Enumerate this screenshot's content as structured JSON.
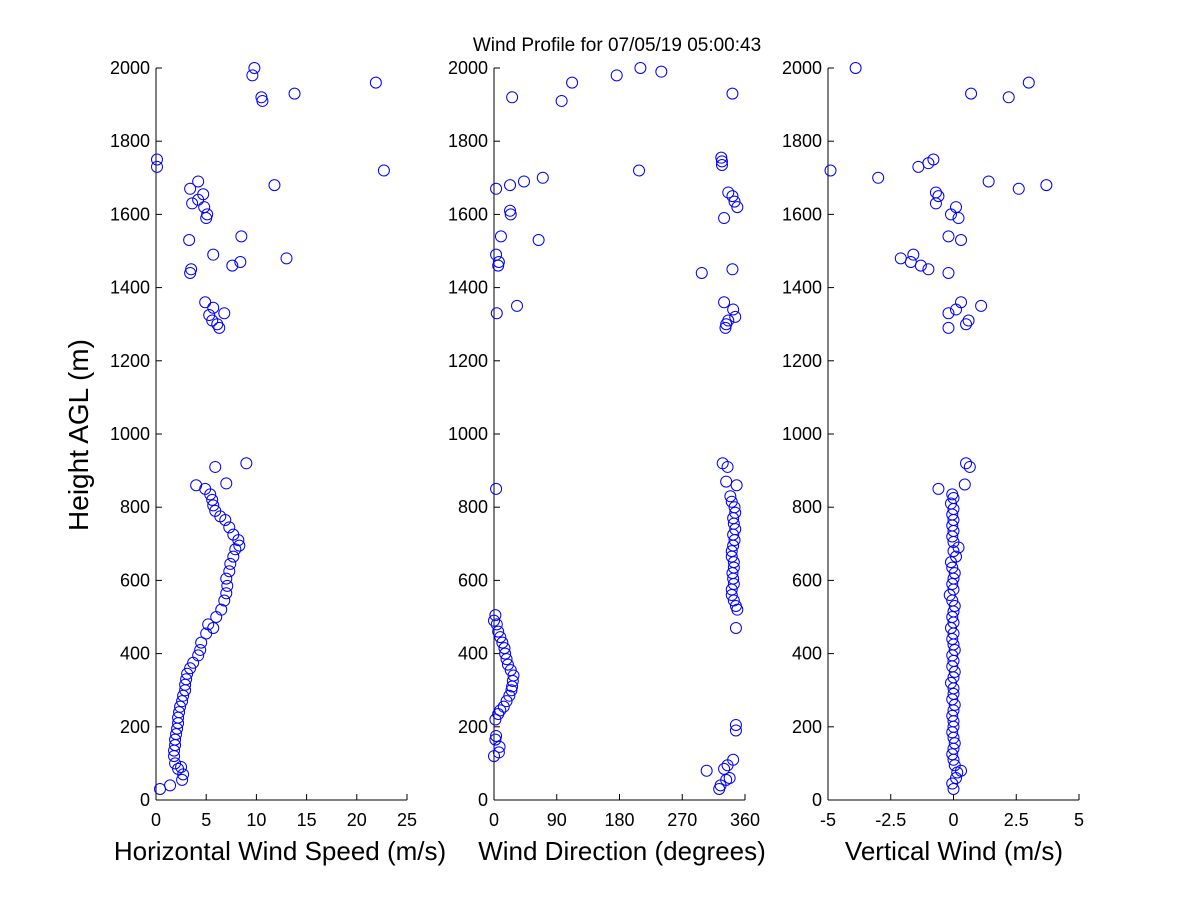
{
  "figure": {
    "title": "Wind Profile for  07/05/19 05:00:43",
    "ylabel": "Height AGL (m)",
    "marker_color": "#0000ff"
  },
  "chart_data": [
    {
      "type": "scatter",
      "xlabel": "Horizontal Wind Speed (m/s)",
      "ylabel": "Height AGL (m)",
      "xlim": [
        0,
        25
      ],
      "ylim": [
        0,
        2000
      ],
      "xticks": [
        0,
        5,
        10,
        15,
        20,
        25
      ],
      "xtick_labels": [
        "0",
        "5",
        "10",
        "15",
        "20",
        "25"
      ],
      "yticks": [
        0,
        200,
        400,
        600,
        800,
        1000,
        1200,
        1400,
        1600,
        1800,
        2000
      ],
      "ytick_labels": [
        "0",
        "200",
        "400",
        "600",
        "800",
        "1000",
        "1200",
        "1400",
        "1600",
        "1800",
        "2000"
      ],
      "grid": false,
      "points": [
        {
          "x": 0.4,
          "y": 30
        },
        {
          "x": 1.4,
          "y": 40
        },
        {
          "x": 2.6,
          "y": 55
        },
        {
          "x": 2.7,
          "y": 70
        },
        {
          "x": 2.2,
          "y": 85
        },
        {
          "x": 2.5,
          "y": 90
        },
        {
          "x": 1.9,
          "y": 100
        },
        {
          "x": 1.8,
          "y": 120
        },
        {
          "x": 1.8,
          "y": 135
        },
        {
          "x": 1.9,
          "y": 150
        },
        {
          "x": 1.9,
          "y": 165
        },
        {
          "x": 2.0,
          "y": 180
        },
        {
          "x": 2.1,
          "y": 195
        },
        {
          "x": 2.2,
          "y": 210
        },
        {
          "x": 2.2,
          "y": 225
        },
        {
          "x": 2.3,
          "y": 240
        },
        {
          "x": 2.4,
          "y": 255
        },
        {
          "x": 2.6,
          "y": 270
        },
        {
          "x": 2.7,
          "y": 285
        },
        {
          "x": 2.9,
          "y": 300
        },
        {
          "x": 2.9,
          "y": 315
        },
        {
          "x": 3.0,
          "y": 330
        },
        {
          "x": 3.1,
          "y": 345
        },
        {
          "x": 3.4,
          "y": 360
        },
        {
          "x": 3.7,
          "y": 375
        },
        {
          "x": 4.2,
          "y": 395
        },
        {
          "x": 4.4,
          "y": 410
        },
        {
          "x": 4.5,
          "y": 430
        },
        {
          "x": 5.0,
          "y": 455
        },
        {
          "x": 5.2,
          "y": 480
        },
        {
          "x": 5.7,
          "y": 470
        },
        {
          "x": 6.0,
          "y": 500
        },
        {
          "x": 6.5,
          "y": 520
        },
        {
          "x": 6.8,
          "y": 545
        },
        {
          "x": 7.0,
          "y": 565
        },
        {
          "x": 7.1,
          "y": 585
        },
        {
          "x": 7.0,
          "y": 605
        },
        {
          "x": 7.3,
          "y": 625
        },
        {
          "x": 7.4,
          "y": 645
        },
        {
          "x": 7.7,
          "y": 665
        },
        {
          "x": 7.9,
          "y": 685
        },
        {
          "x": 8.3,
          "y": 695
        },
        {
          "x": 8.2,
          "y": 710
        },
        {
          "x": 7.7,
          "y": 725
        },
        {
          "x": 7.3,
          "y": 745
        },
        {
          "x": 6.9,
          "y": 765
        },
        {
          "x": 6.4,
          "y": 775
        },
        {
          "x": 5.9,
          "y": 790
        },
        {
          "x": 5.7,
          "y": 805
        },
        {
          "x": 5.6,
          "y": 820
        },
        {
          "x": 5.4,
          "y": 835
        },
        {
          "x": 4.9,
          "y": 850
        },
        {
          "x": 4.0,
          "y": 860
        },
        {
          "x": 7.0,
          "y": 865
        },
        {
          "x": 5.9,
          "y": 910
        },
        {
          "x": 9.0,
          "y": 920
        },
        {
          "x": 6.3,
          "y": 1290
        },
        {
          "x": 6.1,
          "y": 1300
        },
        {
          "x": 5.6,
          "y": 1310
        },
        {
          "x": 5.3,
          "y": 1325
        },
        {
          "x": 6.8,
          "y": 1330
        },
        {
          "x": 5.7,
          "y": 1345
        },
        {
          "x": 4.9,
          "y": 1360
        },
        {
          "x": 3.4,
          "y": 1440
        },
        {
          "x": 3.5,
          "y": 1450
        },
        {
          "x": 7.6,
          "y": 1460
        },
        {
          "x": 8.4,
          "y": 1470
        },
        {
          "x": 13.0,
          "y": 1480
        },
        {
          "x": 5.7,
          "y": 1490
        },
        {
          "x": 3.3,
          "y": 1530
        },
        {
          "x": 8.5,
          "y": 1540
        },
        {
          "x": 5.0,
          "y": 1590
        },
        {
          "x": 5.1,
          "y": 1600
        },
        {
          "x": 4.8,
          "y": 1620
        },
        {
          "x": 3.6,
          "y": 1630
        },
        {
          "x": 4.2,
          "y": 1640
        },
        {
          "x": 4.7,
          "y": 1655
        },
        {
          "x": 3.4,
          "y": 1670
        },
        {
          "x": 11.8,
          "y": 1680
        },
        {
          "x": 4.2,
          "y": 1690
        },
        {
          "x": 22.7,
          "y": 1720
        },
        {
          "x": 0.1,
          "y": 1730
        },
        {
          "x": 0.1,
          "y": 1750
        },
        {
          "x": 10.6,
          "y": 1910
        },
        {
          "x": 10.5,
          "y": 1920
        },
        {
          "x": 13.8,
          "y": 1930
        },
        {
          "x": 21.9,
          "y": 1960
        },
        {
          "x": 9.6,
          "y": 1980
        },
        {
          "x": 9.8,
          "y": 2000
        }
      ]
    },
    {
      "type": "scatter",
      "xlabel": "Wind Direction (degrees)",
      "ylabel": "",
      "xlim": [
        0,
        360
      ],
      "ylim": [
        0,
        2000
      ],
      "xticks": [
        0,
        90,
        180,
        270,
        360
      ],
      "xtick_labels": [
        "0",
        "90",
        "180",
        "270",
        "360"
      ],
      "yticks": [
        0,
        200,
        400,
        600,
        800,
        1000,
        1200,
        1400,
        1600,
        1800,
        2000
      ],
      "ytick_labels": [
        "0",
        "200",
        "400",
        "600",
        "800",
        "1000",
        "1200",
        "1400",
        "1600",
        "1800",
        "2000"
      ],
      "grid": false,
      "points": [
        {
          "x": 323,
          "y": 30
        },
        {
          "x": 325,
          "y": 40
        },
        {
          "x": 333,
          "y": 55
        },
        {
          "x": 338,
          "y": 60
        },
        {
          "x": 305,
          "y": 80
        },
        {
          "x": 330,
          "y": 85
        },
        {
          "x": 335,
          "y": 95
        },
        {
          "x": 343,
          "y": 110
        },
        {
          "x": 0,
          "y": 120
        },
        {
          "x": 7,
          "y": 130
        },
        {
          "x": 8,
          "y": 145
        },
        {
          "x": 2,
          "y": 165
        },
        {
          "x": 3,
          "y": 175
        },
        {
          "x": 347,
          "y": 190
        },
        {
          "x": 347,
          "y": 205
        },
        {
          "x": 2,
          "y": 220
        },
        {
          "x": 6,
          "y": 235
        },
        {
          "x": 9,
          "y": 245
        },
        {
          "x": 14,
          "y": 255
        },
        {
          "x": 18,
          "y": 270
        },
        {
          "x": 22,
          "y": 285
        },
        {
          "x": 25,
          "y": 300
        },
        {
          "x": 26,
          "y": 310
        },
        {
          "x": 27,
          "y": 325
        },
        {
          "x": 28,
          "y": 340
        },
        {
          "x": 24,
          "y": 355
        },
        {
          "x": 20,
          "y": 370
        },
        {
          "x": 18,
          "y": 385
        },
        {
          "x": 16,
          "y": 400
        },
        {
          "x": 15,
          "y": 415
        },
        {
          "x": 12,
          "y": 430
        },
        {
          "x": 9,
          "y": 445
        },
        {
          "x": 6,
          "y": 460
        },
        {
          "x": 347,
          "y": 470
        },
        {
          "x": 4,
          "y": 480
        },
        {
          "x": 0,
          "y": 490
        },
        {
          "x": 2,
          "y": 505
        },
        {
          "x": 349,
          "y": 520
        },
        {
          "x": 347,
          "y": 530
        },
        {
          "x": 344,
          "y": 545
        },
        {
          "x": 341,
          "y": 560
        },
        {
          "x": 341,
          "y": 575
        },
        {
          "x": 344,
          "y": 590
        },
        {
          "x": 343,
          "y": 605
        },
        {
          "x": 342,
          "y": 620
        },
        {
          "x": 344,
          "y": 635
        },
        {
          "x": 344,
          "y": 650
        },
        {
          "x": 341,
          "y": 665
        },
        {
          "x": 341,
          "y": 680
        },
        {
          "x": 343,
          "y": 695
        },
        {
          "x": 345,
          "y": 710
        },
        {
          "x": 343,
          "y": 725
        },
        {
          "x": 346,
          "y": 740
        },
        {
          "x": 344,
          "y": 755
        },
        {
          "x": 343,
          "y": 770
        },
        {
          "x": 346,
          "y": 785
        },
        {
          "x": 345,
          "y": 800
        },
        {
          "x": 341,
          "y": 815
        },
        {
          "x": 339,
          "y": 830
        },
        {
          "x": 348,
          "y": 860
        },
        {
          "x": 333,
          "y": 870
        },
        {
          "x": 3,
          "y": 850
        },
        {
          "x": 335,
          "y": 910
        },
        {
          "x": 328,
          "y": 920
        },
        {
          "x": 332,
          "y": 1290
        },
        {
          "x": 333,
          "y": 1300
        },
        {
          "x": 336,
          "y": 1310
        },
        {
          "x": 346,
          "y": 1320
        },
        {
          "x": 343,
          "y": 1340
        },
        {
          "x": 33,
          "y": 1350
        },
        {
          "x": 330,
          "y": 1360
        },
        {
          "x": 4,
          "y": 1330
        },
        {
          "x": 298,
          "y": 1440
        },
        {
          "x": 342,
          "y": 1450
        },
        {
          "x": 6,
          "y": 1460
        },
        {
          "x": 7,
          "y": 1470
        },
        {
          "x": 3,
          "y": 1490
        },
        {
          "x": 64,
          "y": 1530
        },
        {
          "x": 10,
          "y": 1540
        },
        {
          "x": 330,
          "y": 1590
        },
        {
          "x": 24,
          "y": 1600
        },
        {
          "x": 23,
          "y": 1610
        },
        {
          "x": 349,
          "y": 1620
        },
        {
          "x": 345,
          "y": 1635
        },
        {
          "x": 342,
          "y": 1650
        },
        {
          "x": 336,
          "y": 1660
        },
        {
          "x": 3,
          "y": 1670
        },
        {
          "x": 23,
          "y": 1680
        },
        {
          "x": 43,
          "y": 1690
        },
        {
          "x": 70,
          "y": 1700
        },
        {
          "x": 208,
          "y": 1720
        },
        {
          "x": 327,
          "y": 1735
        },
        {
          "x": 327,
          "y": 1745
        },
        {
          "x": 326,
          "y": 1755
        },
        {
          "x": 26,
          "y": 1920
        },
        {
          "x": 97,
          "y": 1910
        },
        {
          "x": 342,
          "y": 1930
        },
        {
          "x": 112,
          "y": 1960
        },
        {
          "x": 176,
          "y": 1980
        },
        {
          "x": 240,
          "y": 1990
        },
        {
          "x": 210,
          "y": 2000
        }
      ]
    },
    {
      "type": "scatter",
      "xlabel": "Vertical Wind (m/s)",
      "ylabel": "",
      "xlim": [
        -5,
        5
      ],
      "ylim": [
        0,
        2000
      ],
      "xticks": [
        -5,
        -2.5,
        0,
        2.5,
        5
      ],
      "xtick_labels": [
        "-5",
        "-2.5",
        "0",
        "2.5",
        "5"
      ],
      "yticks": [
        0,
        200,
        400,
        600,
        800,
        1000,
        1200,
        1400,
        1600,
        1800,
        2000
      ],
      "ytick_labels": [
        "0",
        "200",
        "400",
        "600",
        "800",
        "1000",
        "1200",
        "1400",
        "1600",
        "1800",
        "2000"
      ],
      "grid": false,
      "points": [
        {
          "x": 0.0,
          "y": 30
        },
        {
          "x": -0.05,
          "y": 45
        },
        {
          "x": 0.1,
          "y": 60
        },
        {
          "x": 0.15,
          "y": 75
        },
        {
          "x": 0.3,
          "y": 80
        },
        {
          "x": 0.05,
          "y": 95
        },
        {
          "x": 0.0,
          "y": 110
        },
        {
          "x": -0.05,
          "y": 125
        },
        {
          "x": 0.0,
          "y": 140
        },
        {
          "x": 0.05,
          "y": 155
        },
        {
          "x": 0.0,
          "y": 170
        },
        {
          "x": -0.05,
          "y": 185
        },
        {
          "x": 0.0,
          "y": 200
        },
        {
          "x": 0.0,
          "y": 215
        },
        {
          "x": -0.05,
          "y": 230
        },
        {
          "x": 0.0,
          "y": 245
        },
        {
          "x": 0.05,
          "y": 260
        },
        {
          "x": -0.05,
          "y": 275
        },
        {
          "x": 0.0,
          "y": 290
        },
        {
          "x": 0.0,
          "y": 305
        },
        {
          "x": -0.1,
          "y": 320
        },
        {
          "x": 0.0,
          "y": 335
        },
        {
          "x": 0.05,
          "y": 350
        },
        {
          "x": -0.05,
          "y": 365
        },
        {
          "x": 0.0,
          "y": 380
        },
        {
          "x": -0.05,
          "y": 395
        },
        {
          "x": 0.05,
          "y": 410
        },
        {
          "x": 0.0,
          "y": 425
        },
        {
          "x": -0.05,
          "y": 440
        },
        {
          "x": 0.0,
          "y": 455
        },
        {
          "x": -0.1,
          "y": 470
        },
        {
          "x": 0.0,
          "y": 485
        },
        {
          "x": -0.05,
          "y": 500
        },
        {
          "x": 0.0,
          "y": 515
        },
        {
          "x": 0.05,
          "y": 530
        },
        {
          "x": -0.05,
          "y": 545
        },
        {
          "x": -0.15,
          "y": 560
        },
        {
          "x": 0.0,
          "y": 575
        },
        {
          "x": -0.05,
          "y": 590
        },
        {
          "x": 0.0,
          "y": 605
        },
        {
          "x": 0.05,
          "y": 620
        },
        {
          "x": -0.05,
          "y": 635
        },
        {
          "x": -0.1,
          "y": 650
        },
        {
          "x": 0.1,
          "y": 665
        },
        {
          "x": 0.0,
          "y": 680
        },
        {
          "x": 0.2,
          "y": 690
        },
        {
          "x": 0.0,
          "y": 705
        },
        {
          "x": -0.05,
          "y": 720
        },
        {
          "x": 0.0,
          "y": 735
        },
        {
          "x": -0.05,
          "y": 750
        },
        {
          "x": 0.0,
          "y": 765
        },
        {
          "x": -0.05,
          "y": 780
        },
        {
          "x": 0.0,
          "y": 795
        },
        {
          "x": -0.1,
          "y": 810
        },
        {
          "x": 0.0,
          "y": 825
        },
        {
          "x": -0.05,
          "y": 835
        },
        {
          "x": -0.6,
          "y": 850
        },
        {
          "x": 0.45,
          "y": 862
        },
        {
          "x": 0.65,
          "y": 910
        },
        {
          "x": 0.5,
          "y": 920
        },
        {
          "x": -0.2,
          "y": 1290
        },
        {
          "x": 0.5,
          "y": 1300
        },
        {
          "x": 0.6,
          "y": 1310
        },
        {
          "x": -0.2,
          "y": 1330
        },
        {
          "x": 0.1,
          "y": 1340
        },
        {
          "x": 1.1,
          "y": 1350
        },
        {
          "x": 0.3,
          "y": 1360
        },
        {
          "x": -0.2,
          "y": 1440
        },
        {
          "x": -1.0,
          "y": 1450
        },
        {
          "x": -1.3,
          "y": 1460
        },
        {
          "x": -1.7,
          "y": 1470
        },
        {
          "x": -2.1,
          "y": 1480
        },
        {
          "x": -1.6,
          "y": 1490
        },
        {
          "x": 0.3,
          "y": 1530
        },
        {
          "x": -0.2,
          "y": 1540
        },
        {
          "x": 0.2,
          "y": 1590
        },
        {
          "x": -0.1,
          "y": 1600
        },
        {
          "x": 0.1,
          "y": 1620
        },
        {
          "x": -0.7,
          "y": 1630
        },
        {
          "x": -0.6,
          "y": 1650
        },
        {
          "x": -0.7,
          "y": 1660
        },
        {
          "x": 2.6,
          "y": 1670
        },
        {
          "x": 3.7,
          "y": 1680
        },
        {
          "x": 1.4,
          "y": 1690
        },
        {
          "x": -3.0,
          "y": 1700
        },
        {
          "x": -4.9,
          "y": 1720
        },
        {
          "x": -1.4,
          "y": 1730
        },
        {
          "x": -1.0,
          "y": 1740
        },
        {
          "x": -0.8,
          "y": 1750
        },
        {
          "x": 2.2,
          "y": 1920
        },
        {
          "x": 0.7,
          "y": 1930
        },
        {
          "x": 3.0,
          "y": 1960
        },
        {
          "x": -3.9,
          "y": 2000
        }
      ]
    }
  ]
}
